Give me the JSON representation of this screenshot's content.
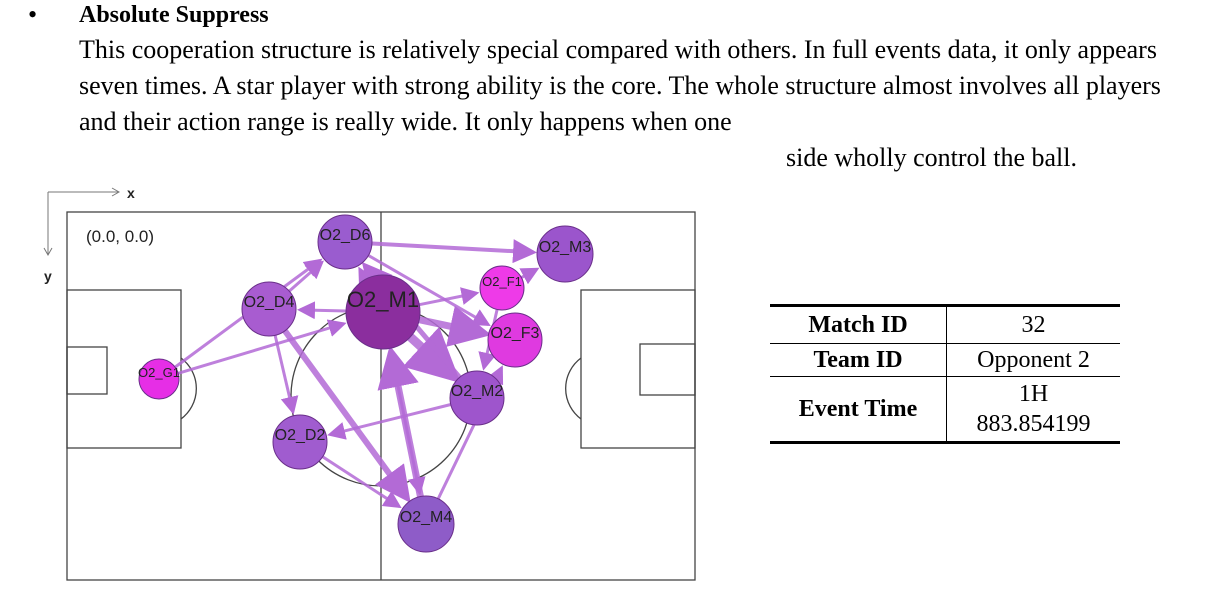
{
  "section": {
    "bullet": "•",
    "heading": "Absolute Suppress",
    "paragraph": "This cooperation structure is relatively special compared with others. In full events data, it only appears seven times. A star player with strong ability is the core. The whole structure almost involves all players and their action range is really wide. It only happens when one",
    "paragraph_last_line": "side wholly control the ball."
  },
  "figure": {
    "axis_x_label": "x",
    "axis_y_label": "y",
    "origin_label": "(0.0,  0.0)",
    "players": [
      {
        "id": "O2_G1",
        "color": "#e62ee6"
      },
      {
        "id": "O2_D4",
        "color": "#a85cd0"
      },
      {
        "id": "O2_D2",
        "color": "#a05ccf"
      },
      {
        "id": "O2_D6",
        "color": "#9a5ccf"
      },
      {
        "id": "O2_M1",
        "color": "#8b2e9e"
      },
      {
        "id": "O2_M2",
        "color": "#9e55cc"
      },
      {
        "id": "O2_M3",
        "color": "#9b55cc"
      },
      {
        "id": "O2_M4",
        "color": "#8e5cc8"
      },
      {
        "id": "O2_F1",
        "color": "#ee3ae8"
      },
      {
        "id": "O2_F3",
        "color": "#df3ae0"
      }
    ],
    "passes": [
      {
        "from": "O2_G1",
        "to": "O2_M1"
      },
      {
        "from": "O2_G1",
        "to": "O2_D6"
      },
      {
        "from": "O2_D4",
        "to": "O2_D6"
      },
      {
        "from": "O2_D4",
        "to": "O2_D2"
      },
      {
        "from": "O2_D4",
        "to": "O2_M4"
      },
      {
        "from": "O2_D6",
        "to": "O2_M3"
      },
      {
        "from": "O2_D6",
        "to": "O2_F3"
      },
      {
        "from": "O2_M1",
        "to": "O2_D6"
      },
      {
        "from": "O2_M1",
        "to": "O2_M2"
      },
      {
        "from": "O2_M1",
        "to": "O2_F3"
      },
      {
        "from": "O2_M1",
        "to": "O2_F1"
      },
      {
        "from": "O2_M1",
        "to": "O2_M4"
      },
      {
        "from": "O2_M2",
        "to": "O2_D6"
      },
      {
        "from": "O2_M2",
        "to": "O2_D2"
      },
      {
        "from": "O2_F1",
        "to": "O2_M3"
      },
      {
        "from": "O2_F1",
        "to": "O2_M2"
      },
      {
        "from": "O2_M4",
        "to": "O2_M1"
      },
      {
        "from": "O2_M4",
        "to": "O2_F3"
      },
      {
        "from": "O2_D2",
        "to": "O2_M4"
      },
      {
        "from": "O2_M1",
        "to": "O2_D4"
      }
    ]
  },
  "table": {
    "rows": [
      {
        "key": "Match ID",
        "value": "32"
      },
      {
        "key": "Team ID",
        "value": "Opponent 2"
      },
      {
        "key": "Event Time",
        "value_line1": "1H",
        "value_line2": "883.854199"
      }
    ]
  }
}
